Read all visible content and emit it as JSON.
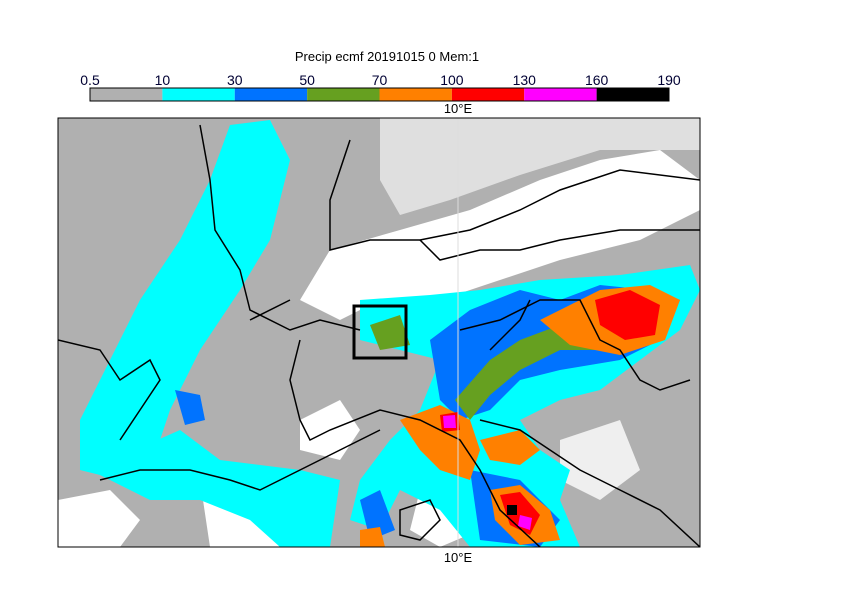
{
  "title": "Precip ecmf 20191015 0 Mem:1",
  "colorbar": {
    "bounds": [
      0.5,
      10,
      30,
      50,
      70,
      100,
      130,
      160,
      190
    ],
    "colors": [
      "#b0b0b0",
      "#00ffff",
      "#0073ff",
      "#66a020",
      "#ff8000",
      "#ff0000",
      "#ff00ff",
      "#000000"
    ]
  },
  "lon_labels": {
    "top": "10°E",
    "bottom": "10°E"
  }
}
